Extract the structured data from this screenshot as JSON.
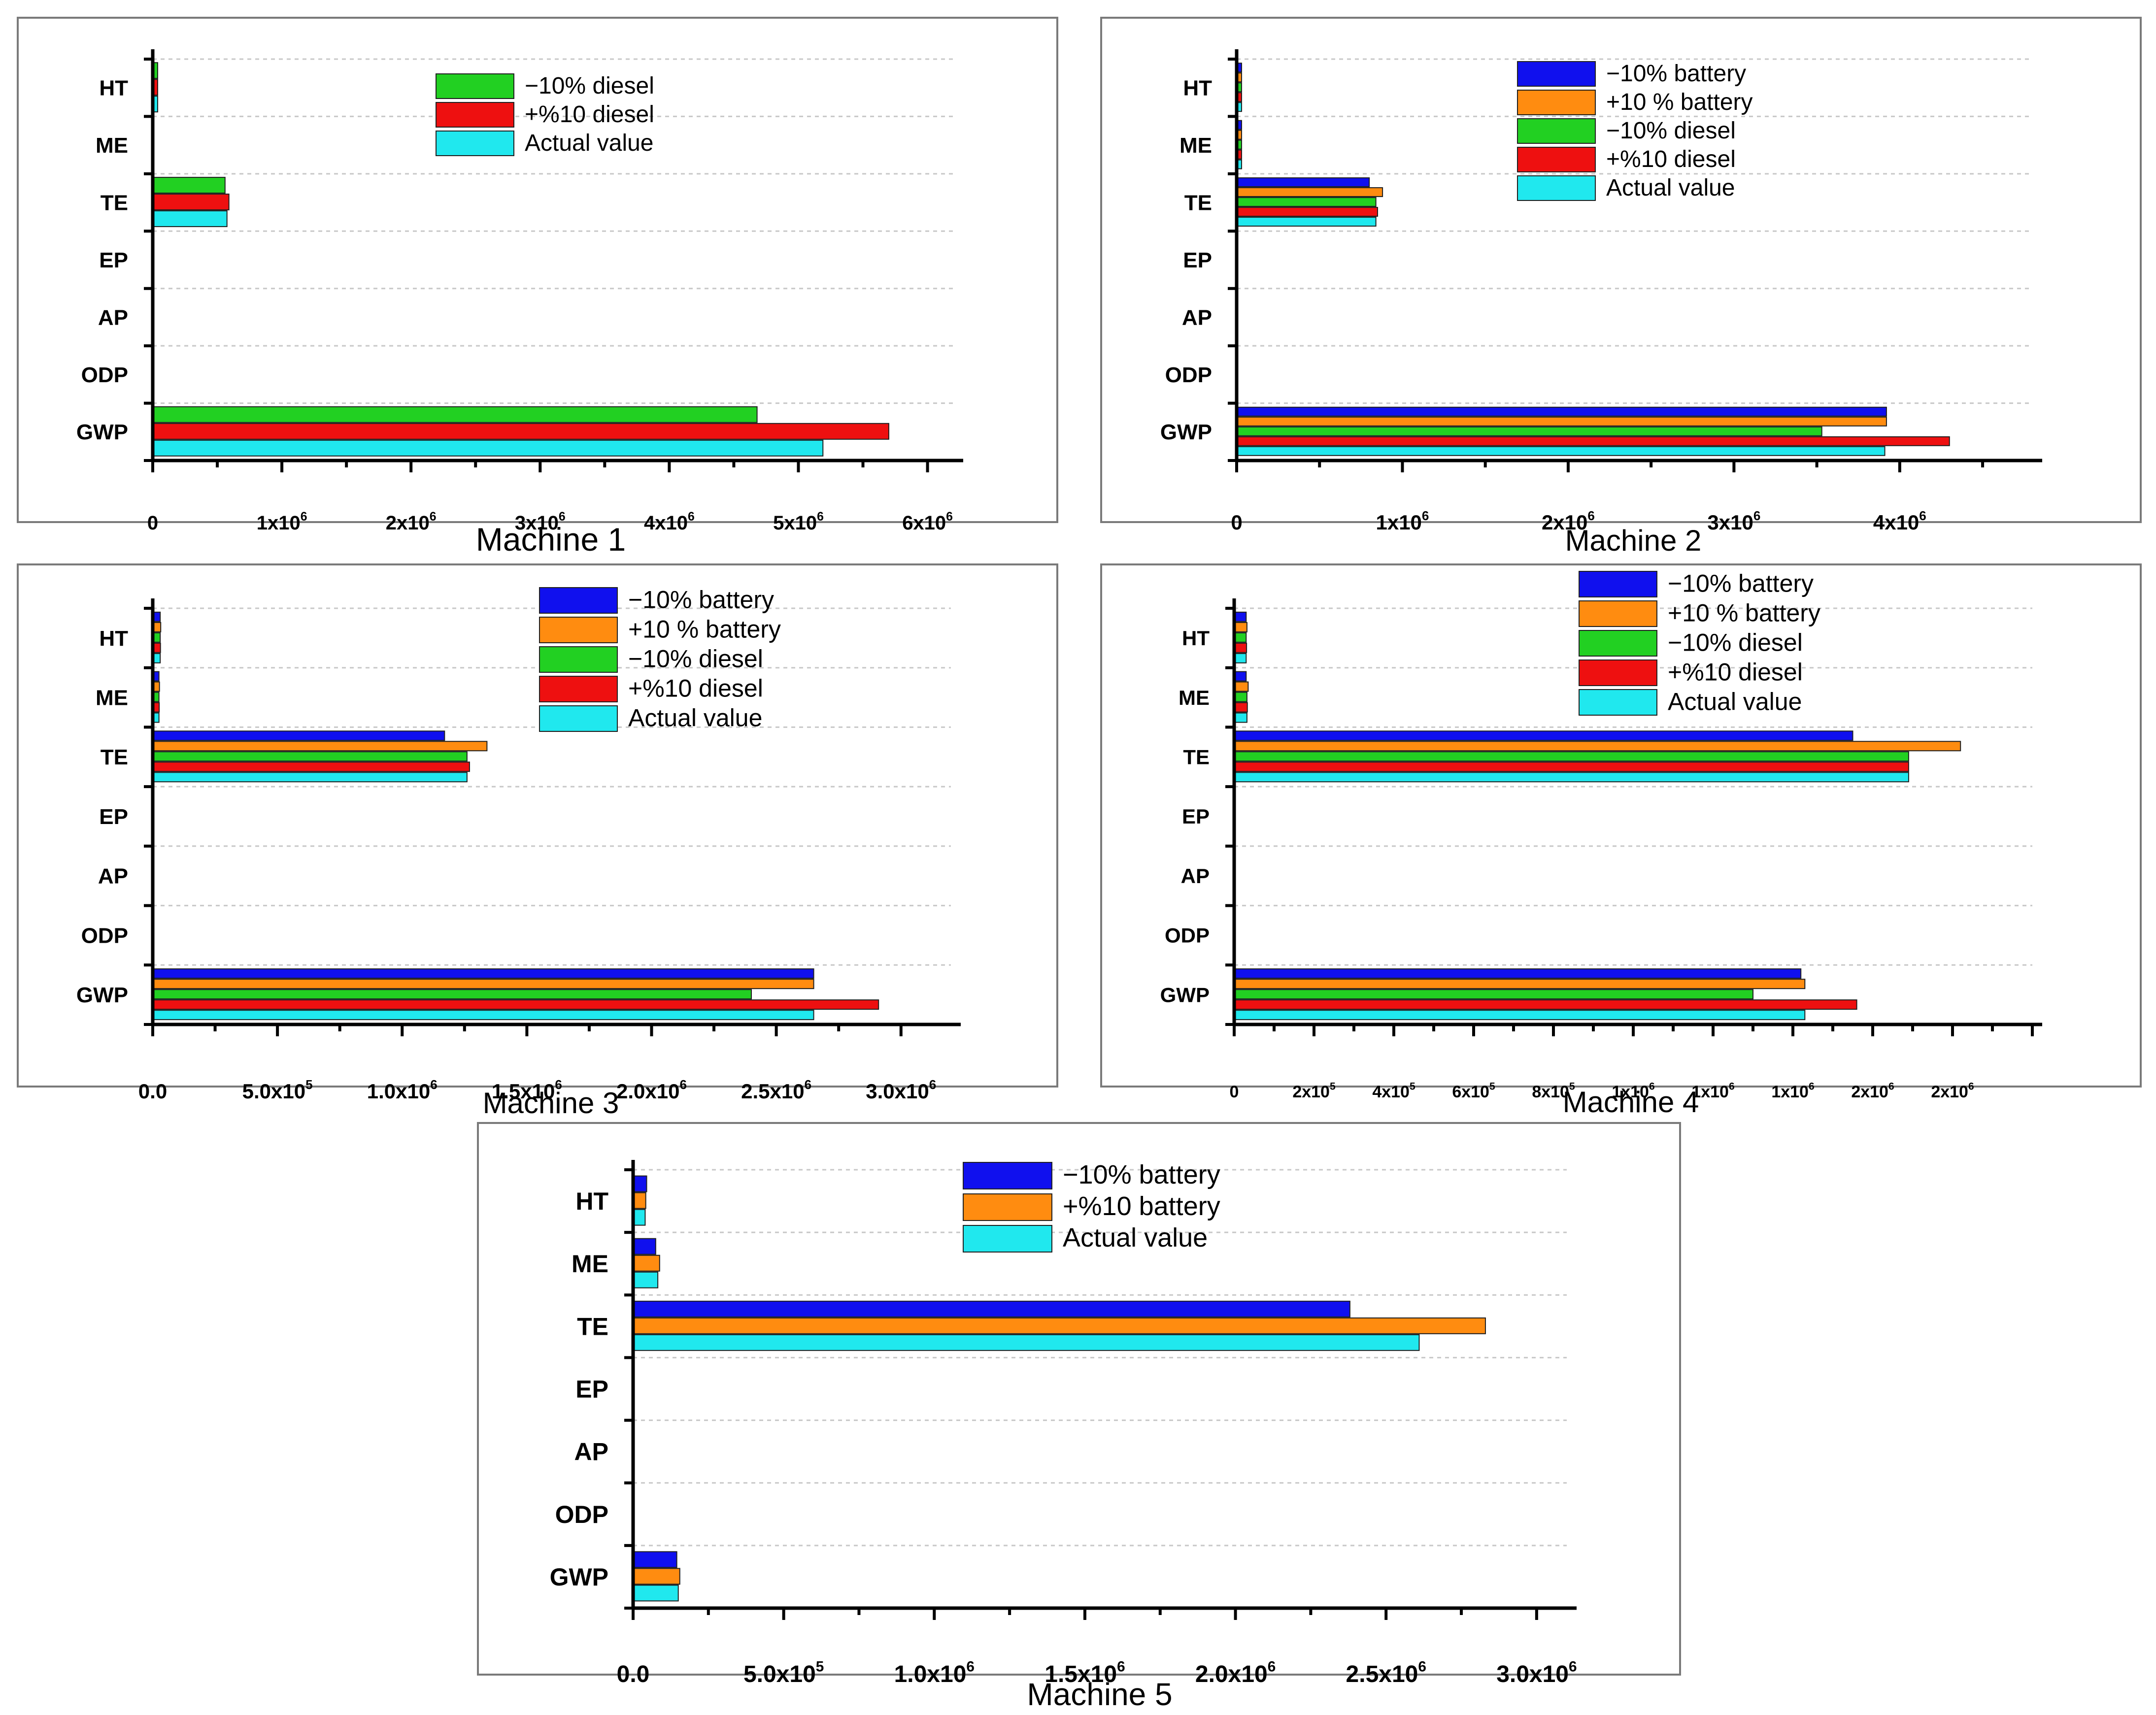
{
  "figure": {
    "colors": {
      "minus10_battery": "#1010ee",
      "plus10_battery": "#ff8c10",
      "minus10_diesel": "#22d022",
      "plus10_diesel": "#ee1010",
      "actual": "#20e8ee"
    }
  },
  "chart_data": [
    {
      "type": "bar",
      "orientation": "horizontal",
      "title": "Machine 1",
      "categories": [
        "HT",
        "ME",
        "TE",
        "EP",
        "AP",
        "ODP",
        "GWP"
      ],
      "xlim": [
        0,
        6200000
      ],
      "ticks": [
        {
          "value": 0,
          "base": "0",
          "exp": ""
        },
        {
          "value": 1000000,
          "base": "1x10",
          "exp": "6"
        },
        {
          "value": 2000000,
          "base": "2x10",
          "exp": "6"
        },
        {
          "value": 3000000,
          "base": "3x10",
          "exp": "6"
        },
        {
          "value": 4000000,
          "base": "4x10",
          "exp": "6"
        },
        {
          "value": 5000000,
          "base": "5x10",
          "exp": "6"
        },
        {
          "value": 6000000,
          "base": "6x10",
          "exp": "6"
        }
      ],
      "series": [
        {
          "name": "−10% diesel",
          "color_key": "minus10_diesel",
          "values": [
            25000,
            0,
            560000,
            0,
            0,
            0,
            4680000
          ]
        },
        {
          "name": "+%10 diesel",
          "color_key": "plus10_diesel",
          "values": [
            30000,
            0,
            590000,
            0,
            0,
            0,
            5700000
          ]
        },
        {
          "name": "Actual value",
          "color_key": "actual",
          "values": [
            28000,
            0,
            575000,
            0,
            0,
            0,
            5190000
          ]
        }
      ]
    },
    {
      "type": "bar",
      "orientation": "horizontal",
      "title": "Machine 2",
      "categories": [
        "HT",
        "ME",
        "TE",
        "EP",
        "AP",
        "ODP",
        "GWP"
      ],
      "xlim": [
        0,
        4800000
      ],
      "ticks": [
        {
          "value": 0,
          "base": "0",
          "exp": ""
        },
        {
          "value": 1000000,
          "base": "1x10",
          "exp": "6"
        },
        {
          "value": 2000000,
          "base": "2x10",
          "exp": "6"
        },
        {
          "value": 3000000,
          "base": "3x10",
          "exp": "6"
        },
        {
          "value": 4000000,
          "base": "4x10",
          "exp": "6"
        }
      ],
      "series": [
        {
          "name": "−10% battery",
          "color_key": "minus10_battery",
          "values": [
            25000,
            12000,
            800000,
            0,
            0,
            0,
            3920000
          ]
        },
        {
          "name": "+10 % battery",
          "color_key": "plus10_battery",
          "values": [
            26000,
            12000,
            880000,
            0,
            0,
            0,
            3920000
          ]
        },
        {
          "name": "−10% diesel",
          "color_key": "minus10_diesel",
          "values": [
            25000,
            12000,
            840000,
            0,
            0,
            0,
            3530000
          ]
        },
        {
          "name": "+%10 diesel",
          "color_key": "plus10_diesel",
          "values": [
            26000,
            12000,
            850000,
            0,
            0,
            0,
            4300000
          ]
        },
        {
          "name": "Actual value",
          "color_key": "actual",
          "values": [
            25000,
            12000,
            840000,
            0,
            0,
            0,
            3910000
          ]
        }
      ]
    },
    {
      "type": "bar",
      "orientation": "horizontal",
      "title": "Machine 3",
      "categories": [
        "HT",
        "ME",
        "TE",
        "EP",
        "AP",
        "ODP",
        "GWP"
      ],
      "xlim": [
        0,
        3200000
      ],
      "ticks": [
        {
          "value": 0,
          "base": "0.0",
          "exp": ""
        },
        {
          "value": 500000,
          "base": "5.0x10",
          "exp": "5"
        },
        {
          "value": 1000000,
          "base": "1.0x10",
          "exp": "6"
        },
        {
          "value": 1500000,
          "base": "1.5x10",
          "exp": "6"
        },
        {
          "value": 2000000,
          "base": "2.0x10",
          "exp": "6"
        },
        {
          "value": 2500000,
          "base": "2.5x10",
          "exp": "6"
        },
        {
          "value": 3000000,
          "base": "3.0x10",
          "exp": "6"
        }
      ],
      "series": [
        {
          "name": "−10% battery",
          "color_key": "minus10_battery",
          "values": [
            30000,
            25000,
            1170000,
            0,
            0,
            0,
            2650000
          ]
        },
        {
          "name": "+10 % battery",
          "color_key": "plus10_battery",
          "values": [
            32000,
            27000,
            1340000,
            0,
            0,
            0,
            2650000
          ]
        },
        {
          "name": "−10% diesel",
          "color_key": "minus10_diesel",
          "values": [
            30000,
            25000,
            1260000,
            0,
            0,
            0,
            2400000
          ]
        },
        {
          "name": "+%10 diesel",
          "color_key": "plus10_diesel",
          "values": [
            31000,
            26000,
            1270000,
            0,
            0,
            0,
            2910000
          ]
        },
        {
          "name": "Actual value",
          "color_key": "actual",
          "values": [
            30000,
            25000,
            1260000,
            0,
            0,
            0,
            2650000
          ]
        }
      ]
    },
    {
      "type": "bar",
      "orientation": "horizontal",
      "title": "Machine 4",
      "categories": [
        "HT",
        "ME",
        "TE",
        "EP",
        "AP",
        "ODP",
        "GWP"
      ],
      "xlim": [
        0,
        2000000
      ],
      "ticks": [
        {
          "value": 0,
          "base": "0",
          "exp": ""
        },
        {
          "value": 200000,
          "base": "2x10",
          "exp": "5"
        },
        {
          "value": 400000,
          "base": "4x10",
          "exp": "5"
        },
        {
          "value": 600000,
          "base": "6x10",
          "exp": "5"
        },
        {
          "value": 800000,
          "base": "8x10",
          "exp": "5"
        },
        {
          "value": 1000000,
          "base": "1x10",
          "exp": "6"
        },
        {
          "value": 1200000,
          "base": "1x10",
          "exp": "6"
        },
        {
          "value": 1400000,
          "base": "1x10",
          "exp": "6"
        },
        {
          "value": 1600000,
          "base": "2x10",
          "exp": "6"
        },
        {
          "value": 1800000,
          "base": "2x10",
          "exp": "6"
        }
      ],
      "series": [
        {
          "name": "−10% battery",
          "color_key": "minus10_battery",
          "values": [
            30000,
            30000,
            1550000,
            0,
            0,
            0,
            1420000
          ]
        },
        {
          "name": "+10 % battery",
          "color_key": "plus10_battery",
          "values": [
            32000,
            35000,
            1820000,
            0,
            0,
            0,
            1430000
          ]
        },
        {
          "name": "−10% diesel",
          "color_key": "minus10_diesel",
          "values": [
            30000,
            32000,
            1690000,
            0,
            0,
            0,
            1300000
          ]
        },
        {
          "name": "+%10 diesel",
          "color_key": "plus10_diesel",
          "values": [
            31000,
            33000,
            1690000,
            0,
            0,
            0,
            1560000
          ]
        },
        {
          "name": "Actual value",
          "color_key": "actual",
          "values": [
            30000,
            32000,
            1690000,
            0,
            0,
            0,
            1430000
          ]
        }
      ]
    },
    {
      "type": "bar",
      "orientation": "horizontal",
      "title": "Machine 5",
      "categories": [
        "HT",
        "ME",
        "TE",
        "EP",
        "AP",
        "ODP",
        "GWP"
      ],
      "xlim": [
        0,
        3100000
      ],
      "ticks": [
        {
          "value": 0,
          "base": "0.0",
          "exp": ""
        },
        {
          "value": 500000,
          "base": "5.0x10",
          "exp": "5"
        },
        {
          "value": 1000000,
          "base": "1.0x10",
          "exp": "6"
        },
        {
          "value": 1500000,
          "base": "1.5x10",
          "exp": "6"
        },
        {
          "value": 2000000,
          "base": "2.0x10",
          "exp": "6"
        },
        {
          "value": 2500000,
          "base": "2.5x10",
          "exp": "6"
        },
        {
          "value": 3000000,
          "base": "3.0x10",
          "exp": "6"
        }
      ],
      "series": [
        {
          "name": "−10% battery",
          "color_key": "minus10_battery",
          "values": [
            45000,
            75000,
            2380000,
            0,
            0,
            0,
            145000
          ]
        },
        {
          "name": "+%10 battery",
          "color_key": "plus10_battery",
          "values": [
            42000,
            88000,
            2830000,
            0,
            0,
            0,
            155000
          ]
        },
        {
          "name": "Actual value",
          "color_key": "actual",
          "values": [
            40000,
            82000,
            2610000,
            0,
            0,
            0,
            150000
          ]
        }
      ]
    }
  ]
}
